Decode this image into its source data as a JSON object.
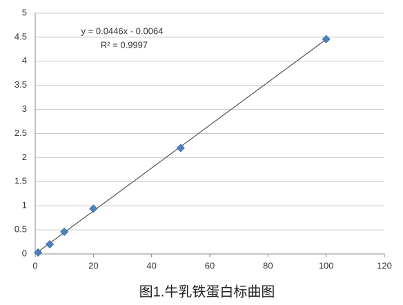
{
  "chart_data": {
    "type": "scatter",
    "x": [
      1,
      5,
      10,
      20,
      50,
      100
    ],
    "values": [
      0.03,
      0.2,
      0.46,
      0.94,
      2.2,
      4.46
    ],
    "color": "#4f81bd",
    "xlim": [
      0,
      120
    ],
    "xticks": [
      0,
      20,
      40,
      60,
      80,
      100,
      120
    ],
    "ylim": [
      0,
      5
    ],
    "yticks": [
      0,
      0.5,
      1,
      1.5,
      2,
      2.5,
      3,
      3.5,
      4,
      4.5,
      5
    ],
    "grid": true,
    "annotations": [
      "y = 0.0446x - 0.0064",
      "R² = 0.9997"
    ],
    "caption": "图1.牛乳铁蛋白标曲图"
  }
}
